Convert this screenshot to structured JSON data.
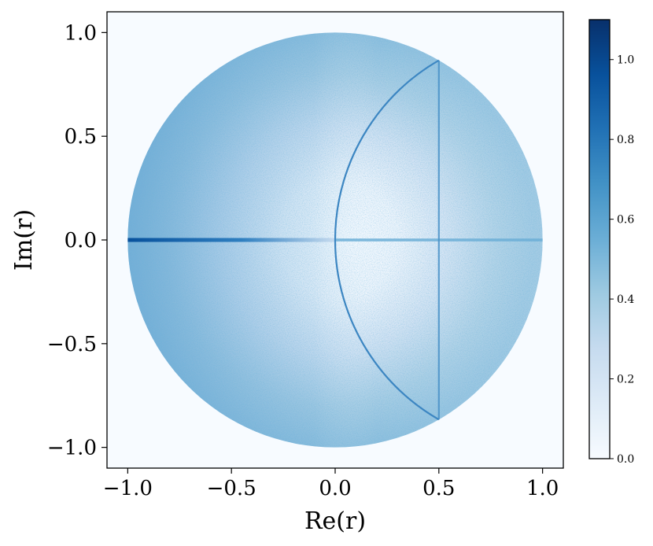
{
  "chart_data": {
    "type": "heatmap",
    "title": "",
    "xlabel": "Re(r)",
    "ylabel": "Im(r)",
    "xlim": [
      -1.1,
      1.1
    ],
    "ylim": [
      -1.1,
      1.1
    ],
    "x_ticks": [
      -1.0,
      -0.5,
      0.0,
      0.5,
      1.0
    ],
    "x_tick_labels": [
      "−1.0",
      "−0.5",
      "0.0",
      "0.5",
      "1.0"
    ],
    "y_ticks": [
      -1.0,
      -0.5,
      0.0,
      0.5,
      1.0
    ],
    "y_tick_labels": [
      "−1.0",
      "−0.5",
      "0.0",
      "0.5",
      "1.0"
    ],
    "colormap": "Blues",
    "colormap_stops": [
      "#f7fbff",
      "#deebf7",
      "#c6dbef",
      "#9ecae1",
      "#6baed6",
      "#4292c6",
      "#2171b5",
      "#08519c",
      "#08306b"
    ],
    "colorbar": {
      "range": [
        0.0,
        1.1
      ],
      "ticks": [
        0.0,
        0.2,
        0.4,
        0.6,
        0.8,
        1.0
      ],
      "tick_labels": [
        "0.0",
        "0.2",
        "0.4",
        "0.6",
        "0.8",
        "1.0"
      ]
    },
    "support": "unit disk |r| <= 1",
    "features": [
      {
        "kind": "background",
        "description": "density low near origin, rising toward the unit circle",
        "value_center": 0.0,
        "value_edge_left": 0.55,
        "value_edge_right": 0.4
      },
      {
        "kind": "real_segment",
        "from": -1.0,
        "to": 0.0,
        "value_at_start": 1.05,
        "value_at_end": 0.2
      },
      {
        "kind": "real_segment",
        "from": 0.0,
        "to": 1.0,
        "value": 0.5
      },
      {
        "kind": "vertical_line",
        "x": 0.5,
        "y_from": -0.866,
        "y_to": 0.866,
        "value": 0.6
      },
      {
        "kind": "arc",
        "center": [
          1.0,
          0.0
        ],
        "radius": 1.0,
        "y_from": -0.866,
        "y_to": 0.866,
        "value": 0.75
      }
    ],
    "grid": false,
    "legend": "none"
  }
}
